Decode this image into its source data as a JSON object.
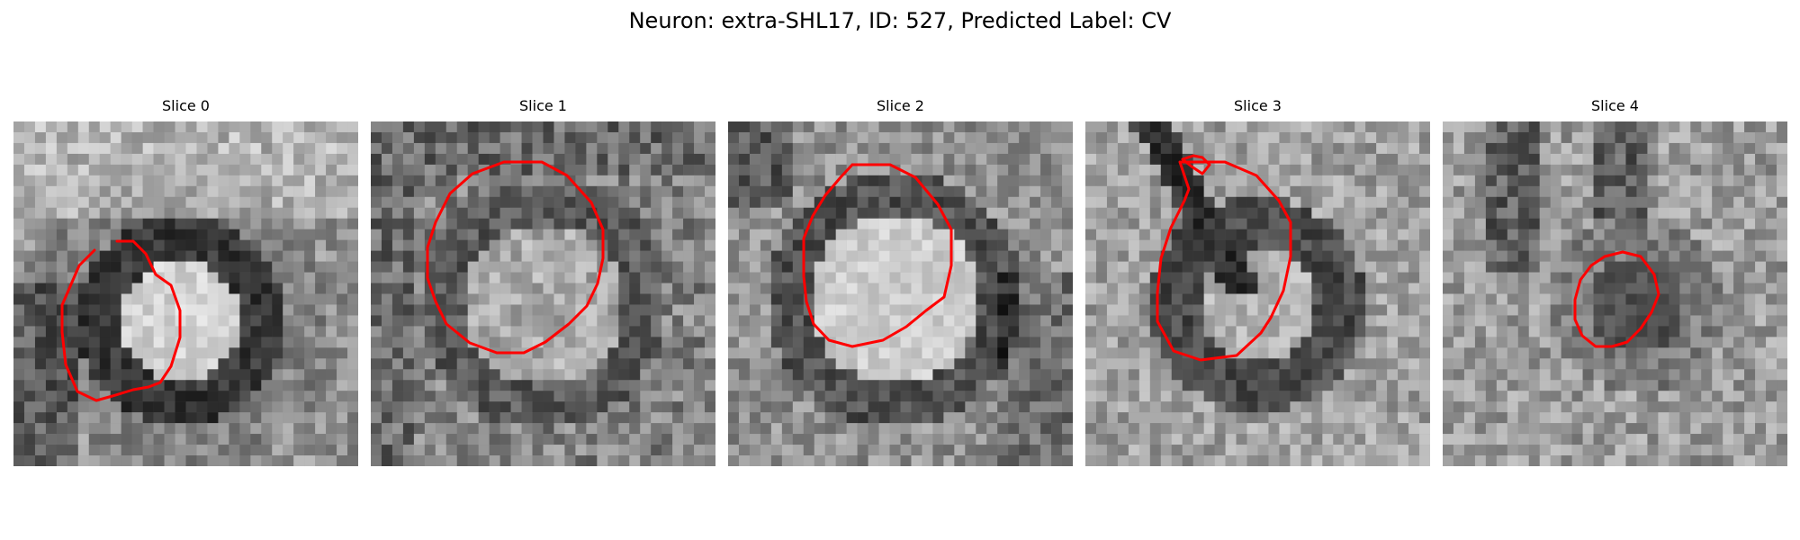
{
  "figure": {
    "title": "Neuron: extra-SHL17, ID: 527, Predicted Label: CV"
  },
  "slices": [
    {
      "label": "Slice 0",
      "contour_color": "#ff0000"
    },
    {
      "label": "Slice 1",
      "contour_color": "#ff0000"
    },
    {
      "label": "Slice 2",
      "contour_color": "#ff0000"
    },
    {
      "label": "Slice 3",
      "contour_color": "#ff0000"
    },
    {
      "label": "Slice 4",
      "contour_color": "#ff0000"
    }
  ]
}
